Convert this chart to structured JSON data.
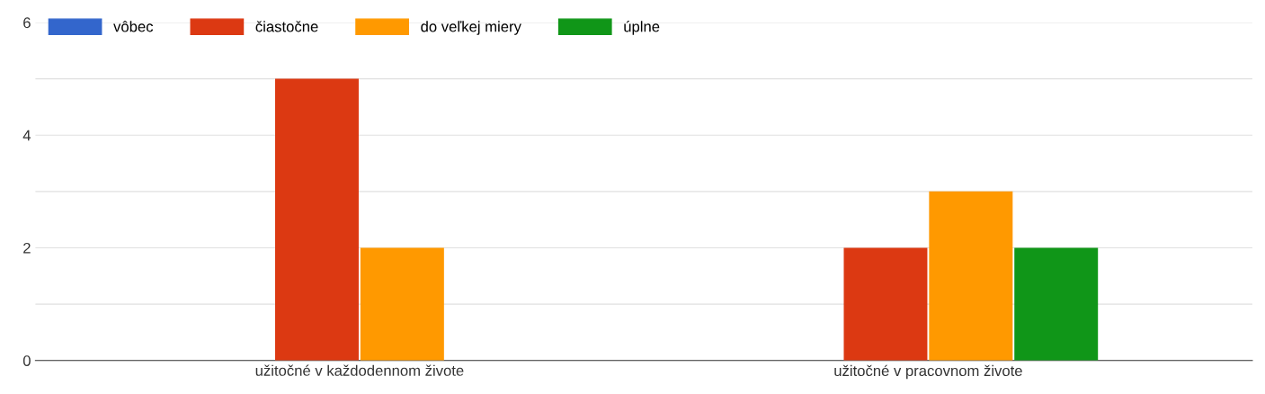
{
  "chart_data": {
    "type": "bar",
    "categories": [
      "užitočné v každodennom živote",
      "užitočné v pracovnom živote"
    ],
    "series": [
      {
        "name": "vôbec",
        "color": "#3366cc",
        "values": [
          0,
          0
        ]
      },
      {
        "name": "čiastočne",
        "color": "#dc3912",
        "values": [
          5,
          2
        ]
      },
      {
        "name": "do veľkej miery",
        "color": "#ff9900",
        "values": [
          2,
          3
        ]
      },
      {
        "name": "úplne",
        "color": "#109618",
        "values": [
          0,
          2
        ]
      }
    ],
    "ylim": [
      0,
      6
    ],
    "yticks": [
      0,
      {
        "value": 1,
        "label": null
      },
      2,
      {
        "value": 3,
        "label": null
      },
      4,
      {
        "value": 5,
        "label": null
      },
      6
    ],
    "grid": "y",
    "legend": "top left"
  }
}
